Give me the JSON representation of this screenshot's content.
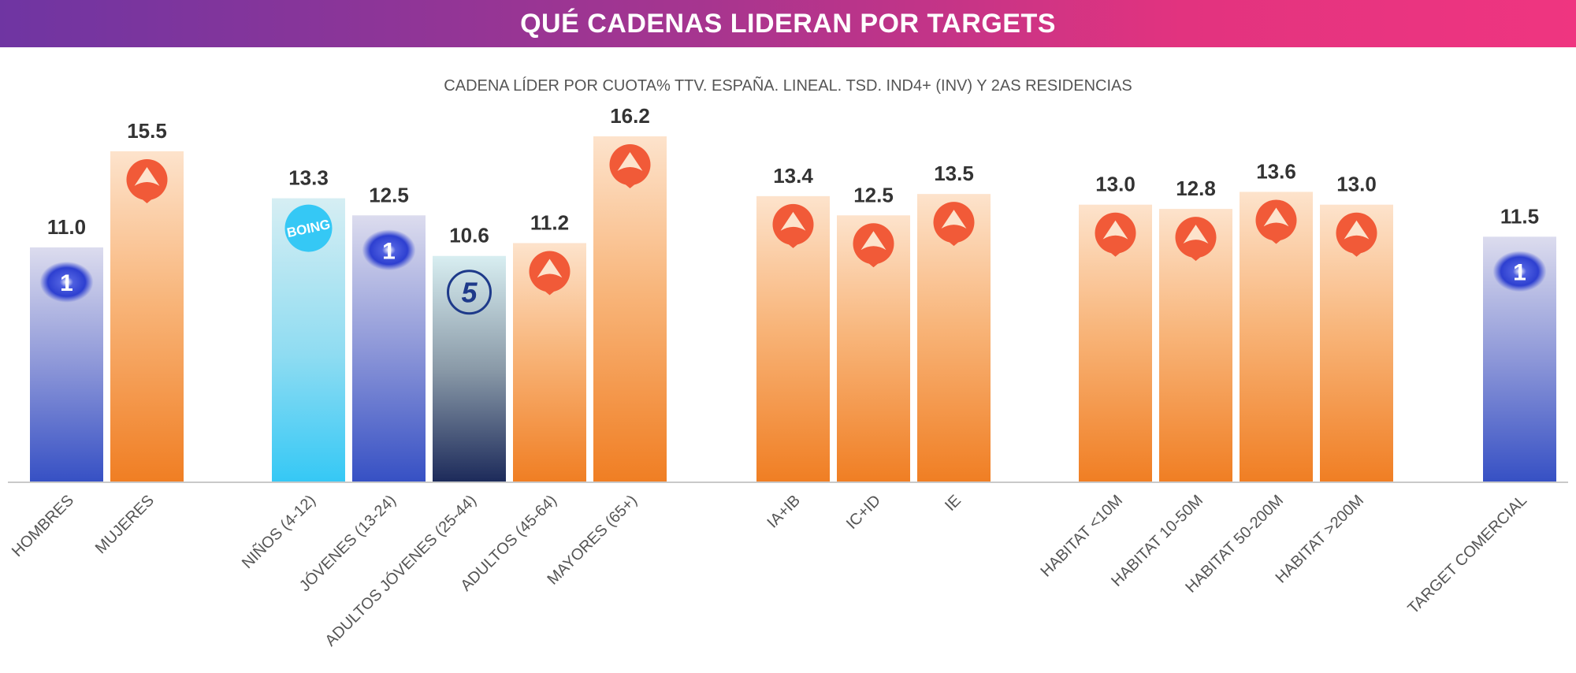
{
  "header": {
    "title": "QUÉ CADENAS LIDERAN POR TARGETS"
  },
  "colors": {
    "banner_start": "#6f35a2",
    "banner_end": "#ef3580",
    "antena3": "#f07e23",
    "la1": "#3a4fc4",
    "boing": "#35c8f2",
    "telecinco": "#1e2d5c"
  },
  "chart_data": {
    "type": "bar",
    "title": "CADENA LÍDER POR CUOTA% TTV. ESPAÑA. LINEAL. TSD. IND4+ (INV) Y 2AS RESIDENCIAS",
    "xlabel": "",
    "ylabel": "",
    "ylim": [
      0,
      16.2
    ],
    "grid": false,
    "groups": [
      [
        "HOMBRES",
        "MUJERES"
      ],
      [
        "NIÑOS (4-12)",
        "JÓVENES (13-24)",
        "ADULTOS JÓVENES (25-44)",
        "ADULTOS (45-64)",
        "MAYORES (65+)"
      ],
      [
        "IA+IB",
        "IC+ID",
        "IE"
      ],
      [
        "HABITAT <10M",
        "HABITAT 10-50M",
        "HABITAT 50-200M",
        "HABITAT >200M"
      ],
      [
        "TARGET COMERCIAL"
      ]
    ],
    "categories": [
      "HOMBRES",
      "MUJERES",
      "NIÑOS (4-12)",
      "JÓVENES (13-24)",
      "ADULTOS JÓVENES (25-44)",
      "ADULTOS (45-64)",
      "MAYORES (65+)",
      "IA+IB",
      "IC+ID",
      "IE",
      "HABITAT <10M",
      "HABITAT 10-50M",
      "HABITAT 50-200M",
      "HABITAT >200M",
      "TARGET COMERCIAL"
    ],
    "values": [
      11.0,
      15.5,
      13.3,
      12.5,
      10.6,
      11.2,
      16.2,
      13.4,
      12.5,
      13.5,
      13.0,
      12.8,
      13.6,
      13.0,
      11.5
    ],
    "value_labels": [
      "11.0",
      "15.5",
      "13.3",
      "12.5",
      "10.6",
      "11.2",
      "16.2",
      "13.4",
      "12.5",
      "13.5",
      "13.0",
      "12.8",
      "13.6",
      "13.0",
      "11.5"
    ],
    "leader": [
      "la1",
      "antena3",
      "boing",
      "la1",
      "telecinco",
      "antena3",
      "antena3",
      "antena3",
      "antena3",
      "antena3",
      "antena3",
      "antena3",
      "antena3",
      "antena3",
      "la1"
    ],
    "logo_text": {
      "la1": "1",
      "boing": "BOING",
      "telecinco": "5"
    }
  }
}
